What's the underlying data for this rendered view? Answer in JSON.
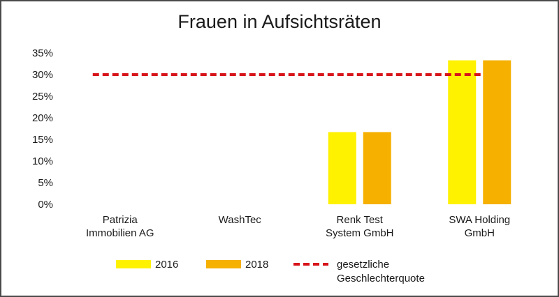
{
  "chart_data": {
    "type": "bar",
    "title": "Frauen in Aufsichtsräten",
    "categories": [
      [
        "Patrizia",
        "Immobilien AG"
      ],
      [
        "WashTec"
      ],
      [
        "Renk Test",
        "System GmbH"
      ],
      [
        "SWA Holding",
        "GmbH"
      ]
    ],
    "series": [
      {
        "name": "2016",
        "color": "#FFF200",
        "values": [
          0,
          0,
          16.7,
          33.3
        ]
      },
      {
        "name": "2018",
        "color": "#F5B000",
        "values": [
          0,
          0,
          16.7,
          33.3
        ]
      }
    ],
    "reference_line": {
      "name": [
        "gesetzliche",
        "Geschlechterquote"
      ],
      "value": 30,
      "color": "#D7141A",
      "style": "dashed"
    },
    "ylim": [
      0,
      35
    ],
    "yticks": [
      "0%",
      "5%",
      "10%",
      "15%",
      "20%",
      "25%",
      "30%",
      "35%"
    ],
    "grid": false,
    "legend_position": "bottom"
  }
}
